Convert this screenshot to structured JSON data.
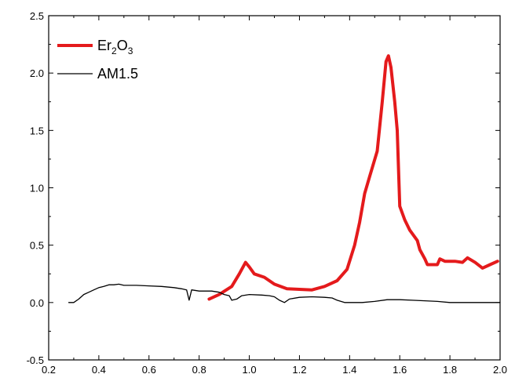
{
  "chart_data": {
    "type": "line",
    "title": "",
    "xlabel": "",
    "ylabel": "",
    "xlim": [
      0.2,
      2.0
    ],
    "ylim": [
      -0.5,
      2.5
    ],
    "xticks": [
      "0.2",
      "0.4",
      "0.6",
      "0.8",
      "1.0",
      "1.2",
      "1.4",
      "1.6",
      "1.8",
      "2.0"
    ],
    "yticks": [
      "-0.5",
      "0.0",
      "0.5",
      "1.0",
      "1.5",
      "2.0",
      "2.5"
    ],
    "grid": false,
    "legend_position": "top-left",
    "series": [
      {
        "name": "Er2O3",
        "legend_main": "Er",
        "legend_sub1": "2",
        "legend_mid": "O",
        "legend_sub2": "3",
        "color": "#e41a1c",
        "points": [
          [
            0.84,
            0.03
          ],
          [
            0.88,
            0.07
          ],
          [
            0.93,
            0.14
          ],
          [
            0.96,
            0.25
          ],
          [
            0.985,
            0.35
          ],
          [
            1.0,
            0.31
          ],
          [
            1.02,
            0.25
          ],
          [
            1.06,
            0.22
          ],
          [
            1.1,
            0.16
          ],
          [
            1.15,
            0.12
          ],
          [
            1.2,
            0.115
          ],
          [
            1.25,
            0.11
          ],
          [
            1.3,
            0.14
          ],
          [
            1.35,
            0.19
          ],
          [
            1.39,
            0.29
          ],
          [
            1.42,
            0.5
          ],
          [
            1.44,
            0.7
          ],
          [
            1.46,
            0.95
          ],
          [
            1.48,
            1.1
          ],
          [
            1.51,
            1.32
          ],
          [
            1.53,
            1.75
          ],
          [
            1.545,
            2.1
          ],
          [
            1.555,
            2.15
          ],
          [
            1.565,
            2.05
          ],
          [
            1.58,
            1.75
          ],
          [
            1.59,
            1.5
          ],
          [
            1.6,
            0.84
          ],
          [
            1.62,
            0.72
          ],
          [
            1.64,
            0.63
          ],
          [
            1.67,
            0.54
          ],
          [
            1.68,
            0.46
          ],
          [
            1.7,
            0.38
          ],
          [
            1.71,
            0.33
          ],
          [
            1.75,
            0.33
          ],
          [
            1.76,
            0.38
          ],
          [
            1.78,
            0.36
          ],
          [
            1.82,
            0.36
          ],
          [
            1.85,
            0.35
          ],
          [
            1.87,
            0.39
          ],
          [
            1.9,
            0.35
          ],
          [
            1.93,
            0.3
          ],
          [
            1.96,
            0.33
          ],
          [
            1.99,
            0.36
          ]
        ]
      },
      {
        "name": "AM1.5",
        "color": "#000000",
        "points": [
          [
            0.28,
            0.0
          ],
          [
            0.3,
            0.0
          ],
          [
            0.32,
            0.03
          ],
          [
            0.34,
            0.07
          ],
          [
            0.36,
            0.09
          ],
          [
            0.38,
            0.11
          ],
          [
            0.4,
            0.13
          ],
          [
            0.42,
            0.14
          ],
          [
            0.44,
            0.155
          ],
          [
            0.46,
            0.155
          ],
          [
            0.48,
            0.16
          ],
          [
            0.5,
            0.15
          ],
          [
            0.55,
            0.15
          ],
          [
            0.6,
            0.145
          ],
          [
            0.65,
            0.14
          ],
          [
            0.7,
            0.13
          ],
          [
            0.73,
            0.12
          ],
          [
            0.75,
            0.11
          ],
          [
            0.76,
            0.02
          ],
          [
            0.77,
            0.11
          ],
          [
            0.8,
            0.1
          ],
          [
            0.85,
            0.1
          ],
          [
            0.88,
            0.09
          ],
          [
            0.9,
            0.07
          ],
          [
            0.92,
            0.06
          ],
          [
            0.93,
            0.02
          ],
          [
            0.95,
            0.03
          ],
          [
            0.97,
            0.06
          ],
          [
            1.0,
            0.07
          ],
          [
            1.05,
            0.065
          ],
          [
            1.08,
            0.06
          ],
          [
            1.1,
            0.05
          ],
          [
            1.12,
            0.02
          ],
          [
            1.14,
            0.0
          ],
          [
            1.16,
            0.03
          ],
          [
            1.2,
            0.045
          ],
          [
            1.25,
            0.05
          ],
          [
            1.3,
            0.045
          ],
          [
            1.33,
            0.04
          ],
          [
            1.35,
            0.02
          ],
          [
            1.38,
            0.0
          ],
          [
            1.4,
            0.0
          ],
          [
            1.45,
            0.0
          ],
          [
            1.5,
            0.01
          ],
          [
            1.55,
            0.025
          ],
          [
            1.6,
            0.025
          ],
          [
            1.65,
            0.02
          ],
          [
            1.7,
            0.015
          ],
          [
            1.75,
            0.01
          ],
          [
            1.8,
            0.0
          ],
          [
            2.0,
            0.0
          ]
        ]
      }
    ]
  }
}
